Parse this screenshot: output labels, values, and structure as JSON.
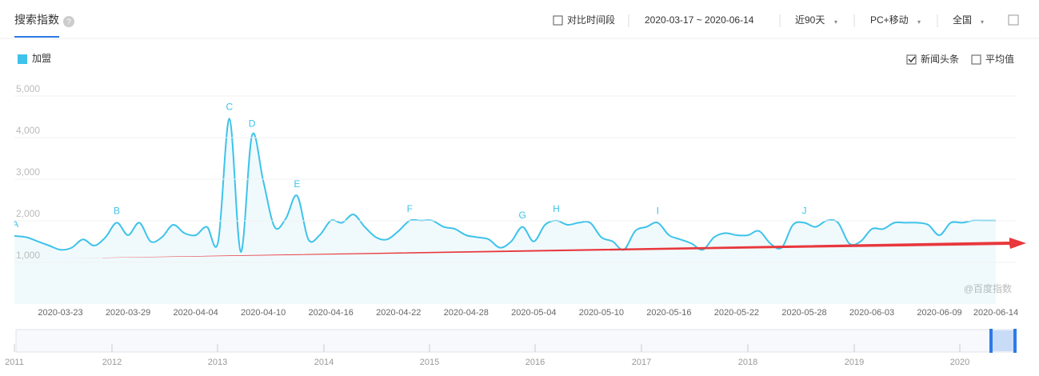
{
  "header": {
    "title": "搜索指数",
    "compare": "对比时间段",
    "date_range": "2020-03-17 ~ 2020-06-14",
    "period": "近90天",
    "device": "PC+移动",
    "region": "全国"
  },
  "options": {
    "news": "新闻头条",
    "average": "平均值"
  },
  "watermark": "@百度指数",
  "navigator": {
    "years": [
      "2011",
      "2012",
      "2013",
      "2014",
      "2015",
      "2016",
      "2017",
      "2018",
      "2019",
      "2020"
    ]
  },
  "chart_data": {
    "type": "line",
    "categories": [
      null,
      null,
      null,
      null,
      null,
      null,
      "2020-03-23",
      null,
      null,
      null,
      null,
      null,
      "2020-03-29",
      null,
      null,
      null,
      null,
      null,
      "2020-04-04",
      null,
      null,
      null,
      null,
      null,
      "2020-04-10",
      null,
      null,
      null,
      null,
      null,
      "2020-04-16",
      null,
      null,
      null,
      null,
      null,
      "2020-04-22",
      null,
      null,
      null,
      null,
      null,
      "2020-04-28",
      null,
      null,
      null,
      null,
      null,
      "2020-05-04",
      null,
      null,
      null,
      null,
      null,
      "2020-05-10",
      null,
      null,
      null,
      null,
      null,
      "2020-05-16",
      null,
      null,
      null,
      null,
      null,
      "2020-05-22",
      null,
      null,
      null,
      null,
      null,
      "2020-05-28",
      null,
      null,
      null,
      null,
      null,
      "2020-06-03",
      null,
      null,
      null,
      null,
      null,
      "2020-06-09",
      null,
      null,
      null,
      null,
      "2020-06-14"
    ],
    "series": [
      {
        "name": "加盟",
        "color": "#3ec3ea",
        "values": [
          1500,
          1490,
          1480,
          1450,
          1350,
          1250,
          1150,
          1200,
          1400,
          1250,
          1450,
          1800,
          1500,
          1800,
          1350,
          1450,
          1750,
          1550,
          1500,
          1700,
          1350,
          4300,
          1100,
          3900,
          2800,
          1700,
          1900,
          2450,
          1400,
          1500,
          1850,
          1800,
          2000,
          1700,
          1450,
          1400,
          1600,
          1850,
          1850,
          1850,
          1700,
          1650,
          1500,
          1450,
          1400,
          1200,
          1350,
          1700,
          1350,
          1750,
          1850,
          1750,
          1800,
          1800,
          1450,
          1350,
          1150,
          1600,
          1700,
          1800,
          1500,
          1400,
          1300,
          1150,
          1450,
          1550,
          1500,
          1500,
          1600,
          1300,
          1200,
          1750,
          1800,
          1700,
          1850,
          1800,
          1300,
          1350,
          1650,
          1650,
          1800,
          1800,
          1800,
          1750,
          1500,
          1800,
          1800,
          1850,
          1850,
          1850
        ]
      }
    ],
    "annotations": [
      "A",
      "B",
      "C",
      "D",
      "E",
      "F",
      "G",
      "H",
      "I",
      "J"
    ],
    "ylim": [
      0,
      5000
    ],
    "yticks": [
      {
        "value": 1000,
        "label": "1,000"
      },
      {
        "value": 2000,
        "label": "2,000"
      },
      {
        "value": 3000,
        "label": "3,000"
      },
      {
        "value": 4000,
        "label": "4,000"
      },
      {
        "value": 5000,
        "label": "5,000"
      }
    ],
    "grid": true
  }
}
